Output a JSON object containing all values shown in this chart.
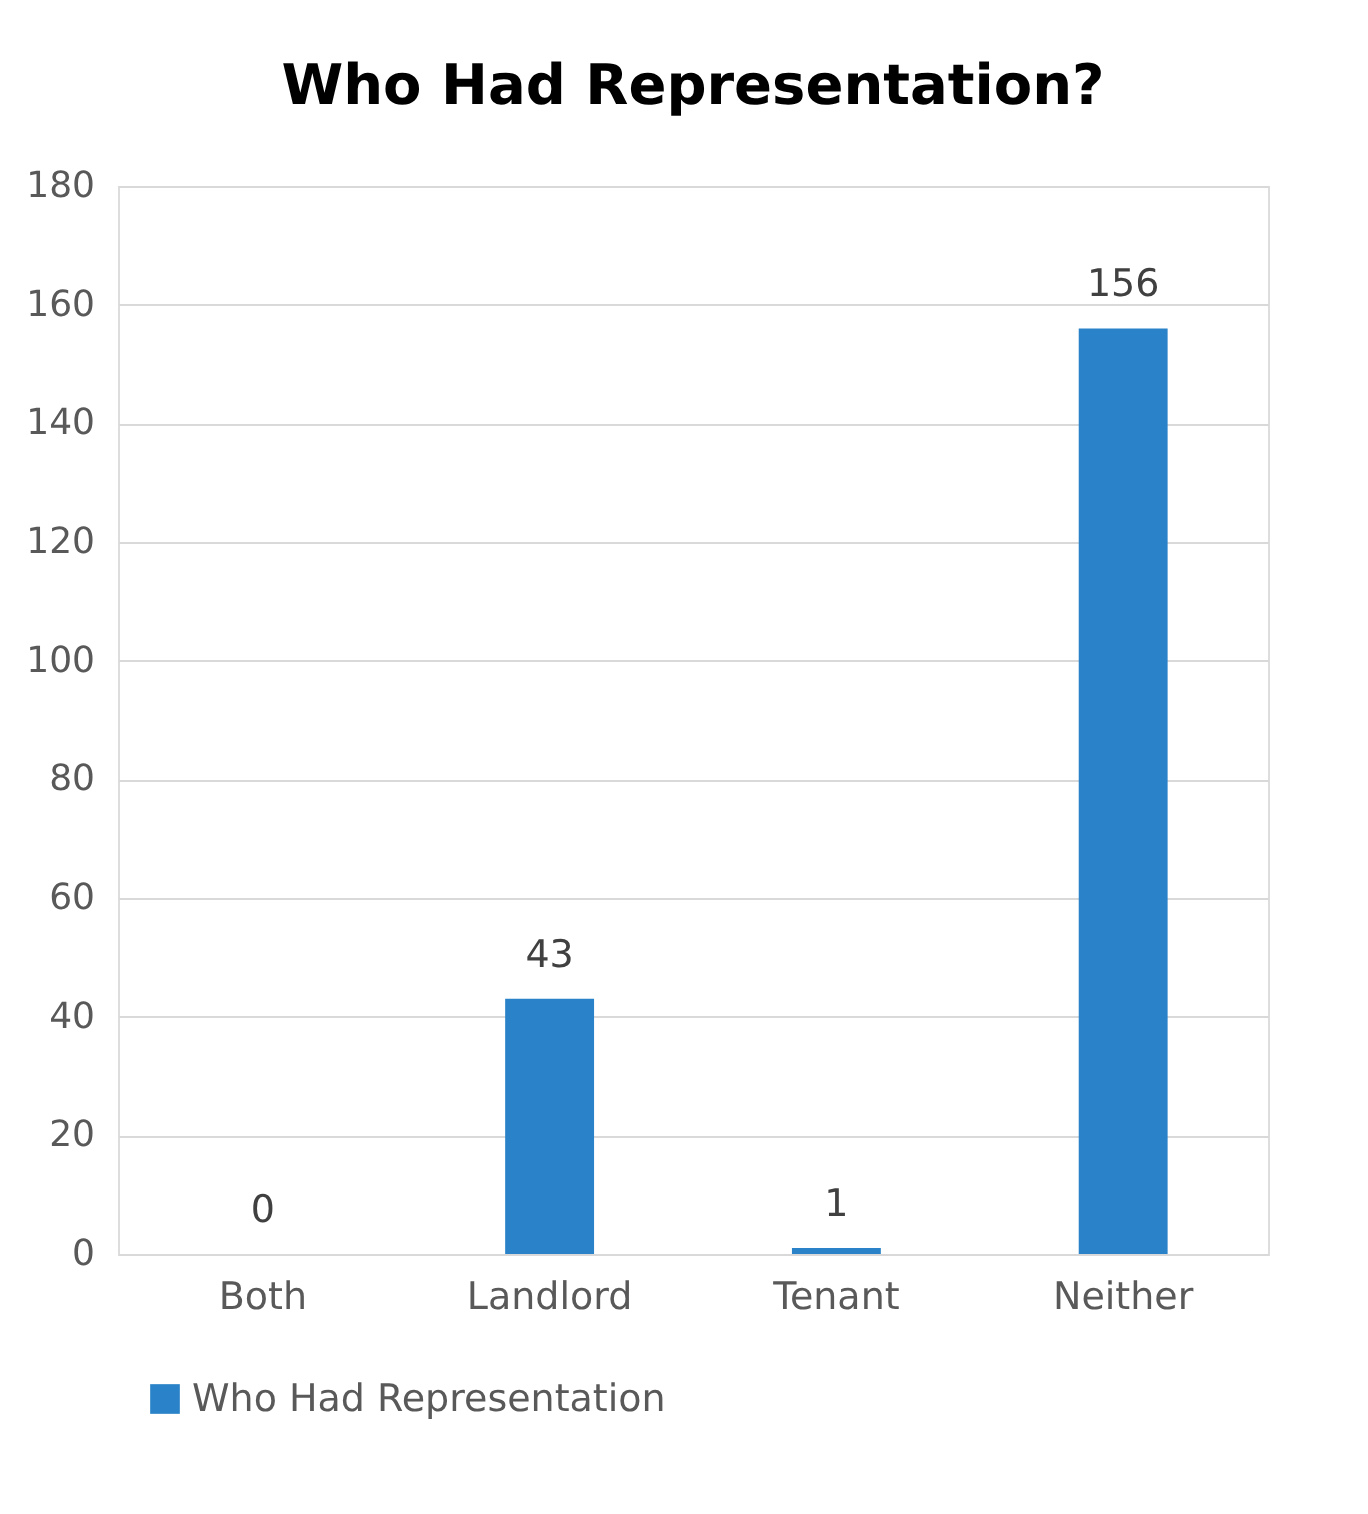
{
  "chart_data": {
    "type": "bar",
    "title": "Who Had Representation?",
    "categories": [
      "Both",
      "Landlord",
      "Tenant",
      "Neither"
    ],
    "series": [
      {
        "name": "Who Had Representation",
        "color": "#2a83c8",
        "values": [
          0,
          43,
          1,
          156
        ]
      }
    ],
    "ylim": [
      0,
      180
    ],
    "yticks": [
      0,
      20,
      40,
      60,
      80,
      100,
      120,
      140,
      160,
      180
    ],
    "grid": "y",
    "legend": "bottom",
    "data_labels": true
  }
}
